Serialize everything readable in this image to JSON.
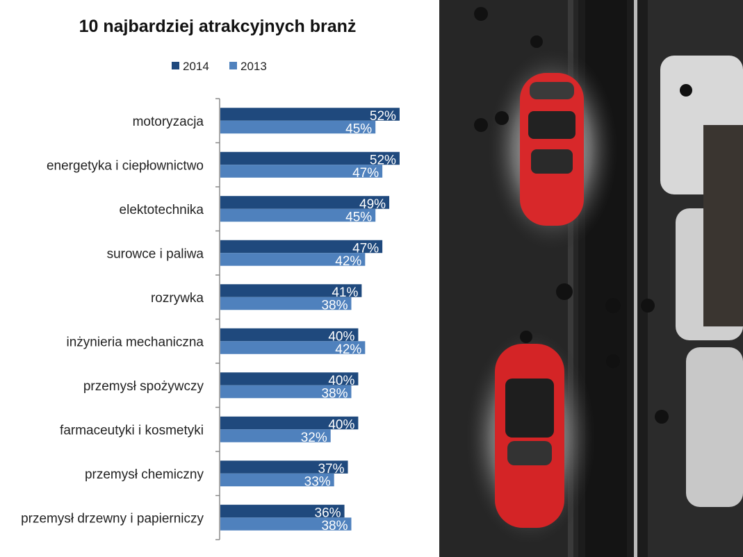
{
  "chart_data": {
    "type": "bar",
    "orientation": "horizontal",
    "title": "10 najbardziej atrakcyjnych branż",
    "legend_position": "top",
    "categories": [
      "motoryzacja",
      "energetyka i ciepłownictwo",
      "elektotechnika",
      "surowce i paliwa",
      "rozrywka",
      "inżynieria mechaniczna",
      "przemysł spożywczy",
      "farmaceutyki i kosmetyki",
      "przemysł chemiczny",
      "przemysł drzewny i papierniczy"
    ],
    "series": [
      {
        "name": "2014",
        "color": "#1f497d",
        "values": [
          52,
          52,
          49,
          47,
          41,
          40,
          40,
          40,
          37,
          36
        ],
        "labels": [
          "52%",
          "52%",
          "49%",
          "47%",
          "41%",
          "40%",
          "40%",
          "40%",
          "37%",
          "36%"
        ]
      },
      {
        "name": "2013",
        "color": "#4f81bd",
        "values": [
          45,
          47,
          45,
          42,
          38,
          42,
          38,
          32,
          33,
          38
        ],
        "labels": [
          "45%",
          "47%",
          "45%",
          "42%",
          "38%",
          "42%",
          "38%",
          "32%",
          "33%",
          "38%"
        ]
      }
    ],
    "grid": false,
    "value_axis_visible": false
  },
  "photo": {
    "description_icon": "photo-cars-top-view"
  }
}
